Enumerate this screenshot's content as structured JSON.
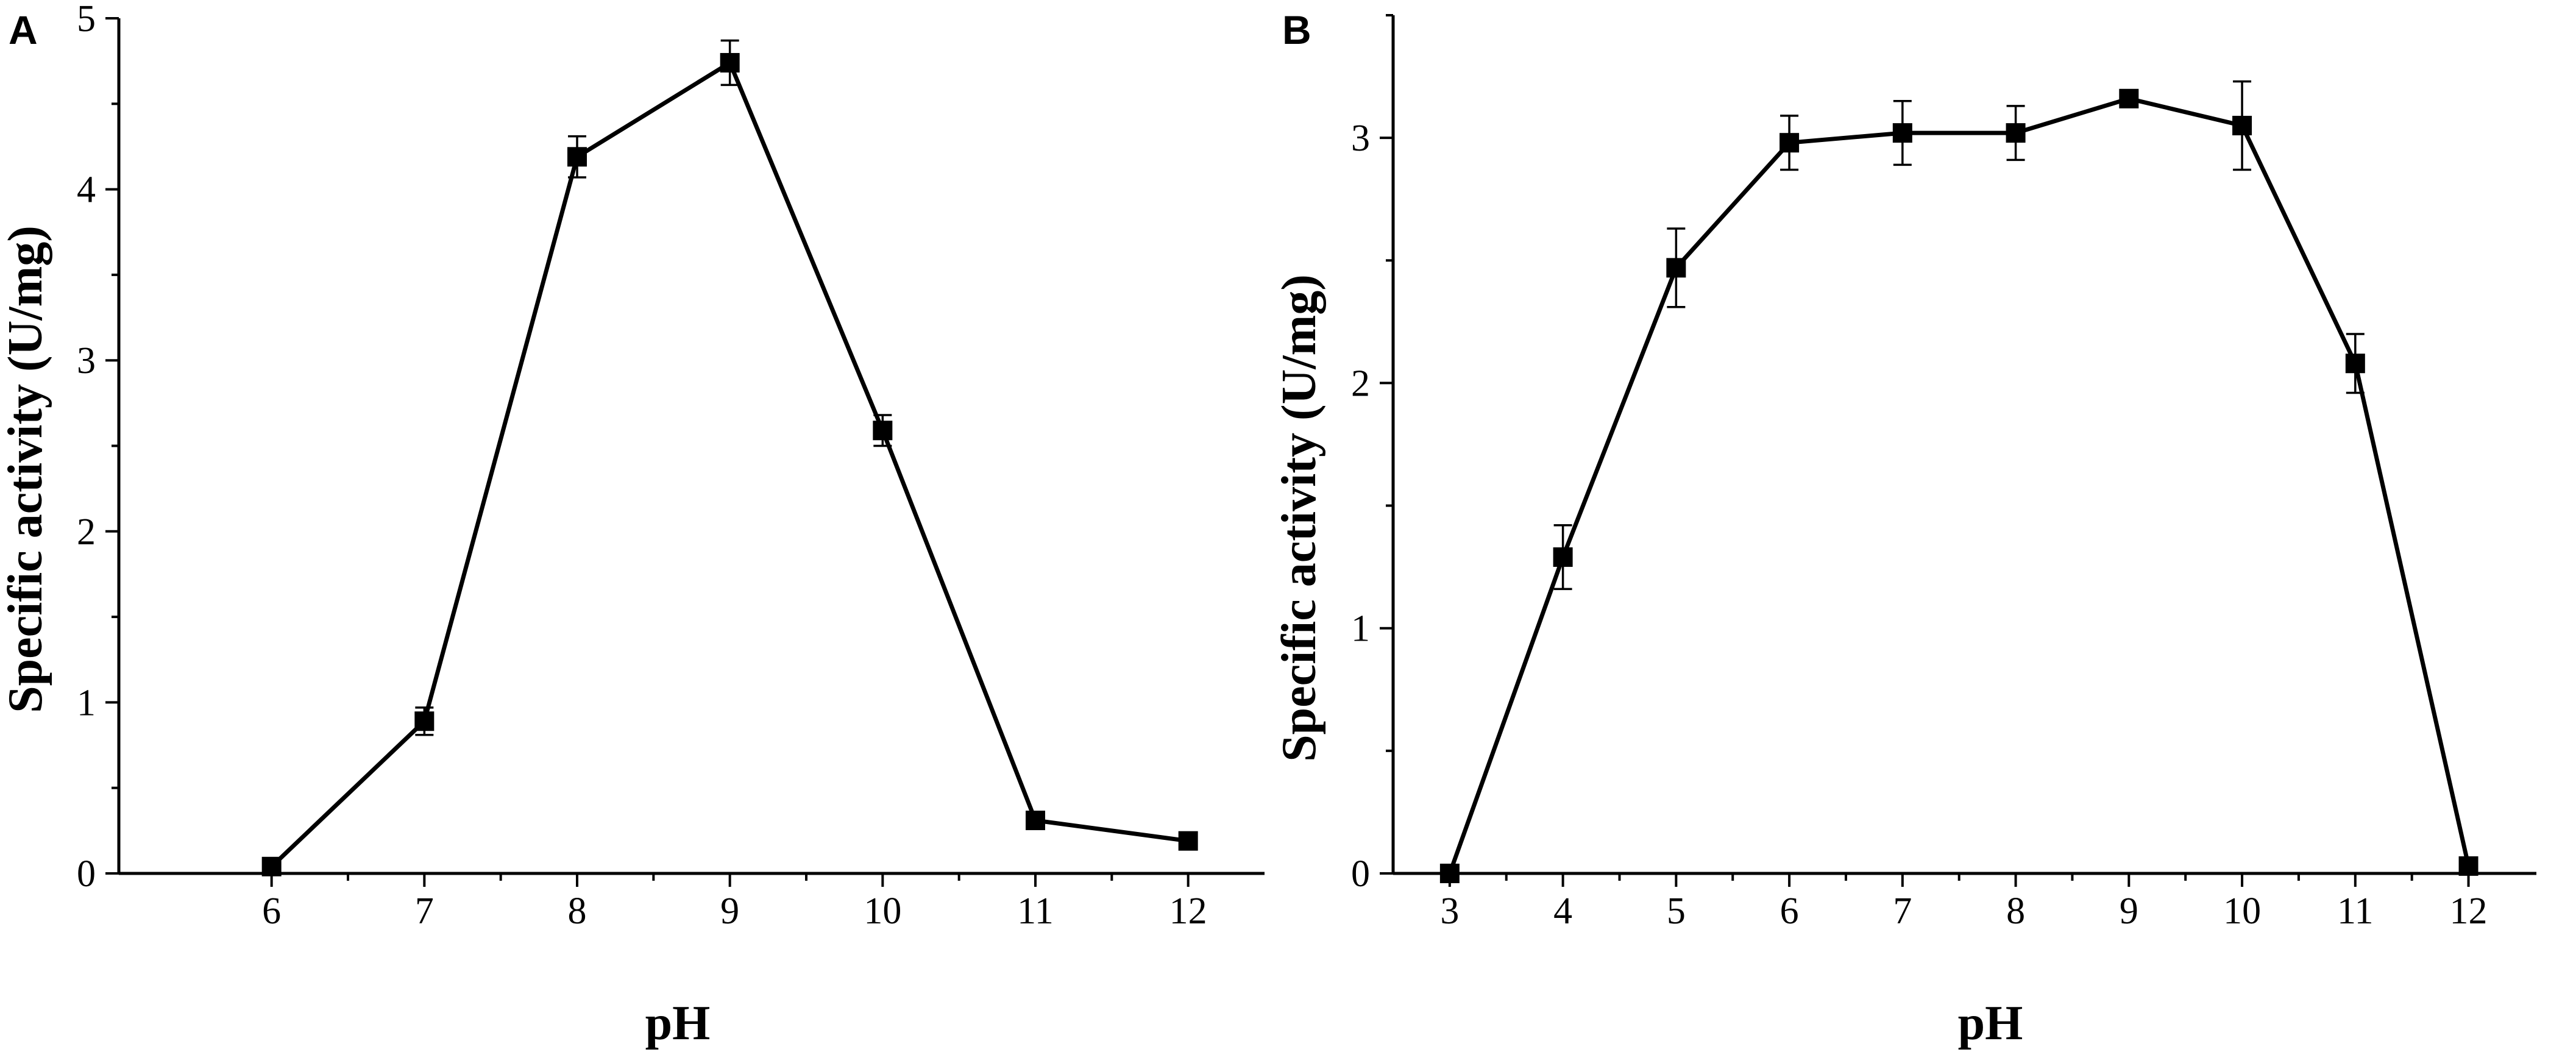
{
  "chart_data": [
    {
      "panel": "A",
      "type": "line",
      "xlabel": "pH",
      "ylabel": "Specific activity (U/mg)",
      "xlim": [
        5.0,
        12.5
      ],
      "ylim": [
        0,
        5
      ],
      "xticks": [
        6,
        7,
        8,
        9,
        10,
        11,
        12
      ],
      "yticks": [
        0,
        1,
        2,
        3,
        4,
        5
      ],
      "series": [
        {
          "x": [
            6,
            7,
            8,
            9,
            10,
            11,
            12
          ],
          "y": [
            0.04,
            0.89,
            4.19,
            4.74,
            2.59,
            0.31,
            0.19
          ],
          "error": [
            0.0,
            0.08,
            0.12,
            0.13,
            0.09,
            0.0,
            0.0
          ]
        }
      ],
      "grid": false
    },
    {
      "panel": "B",
      "type": "line",
      "xlabel": "pH",
      "ylabel": "Specific activity (U/mg)",
      "xlim": [
        2.5,
        12.6
      ],
      "ylim": [
        0,
        3.5
      ],
      "xticks": [
        3,
        4,
        5,
        6,
        7,
        8,
        9,
        10,
        11,
        12
      ],
      "yticks": [
        0,
        1,
        2,
        3
      ],
      "series": [
        {
          "x": [
            3,
            4,
            5,
            6,
            7,
            8,
            9,
            10,
            11,
            12
          ],
          "y": [
            0.0,
            1.29,
            2.47,
            2.98,
            3.02,
            3.02,
            3.16,
            3.05,
            2.08,
            0.03
          ],
          "error": [
            0.0,
            0.13,
            0.16,
            0.11,
            0.13,
            0.11,
            0.03,
            0.18,
            0.12,
            0.0
          ]
        }
      ],
      "grid": false
    }
  ]
}
